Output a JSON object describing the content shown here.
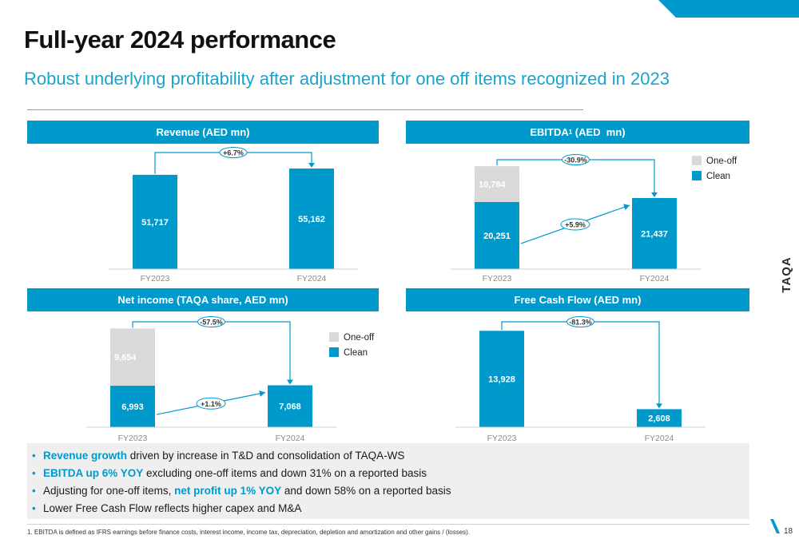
{
  "title": "Full-year 2024 performance",
  "subtitle": "Robust underlying profitability after adjustment for one off items recognized in 2023",
  "brand": "TAQA",
  "colors": {
    "accent": "#0099cc",
    "clean": "#0099cc",
    "one_off": "#d9d9d9",
    "arrow": "#0099cc"
  },
  "panels": {
    "revenue": {
      "header": "Revenue (AED mn)"
    },
    "ebitda": {
      "header_main": "EBITDA",
      "header_sup": "1",
      "header_tail": " (AED  mn)"
    },
    "net_income": {
      "header": "Net income (TAQA share, AED mn)"
    },
    "fcf": {
      "header": "Free Cash Flow (AED mn)"
    }
  },
  "chart_data": [
    {
      "id": "revenue",
      "type": "bar",
      "title": "Revenue (AED mn)",
      "categories": [
        "FY2023",
        "FY2024"
      ],
      "series": [
        {
          "name": "Clean",
          "values": [
            51717,
            55162
          ],
          "labels": [
            "51,717",
            "55,162"
          ]
        }
      ],
      "change_label": "+6.7%",
      "ylim": [
        0,
        60000
      ]
    },
    {
      "id": "ebitda",
      "type": "bar",
      "title": "EBITDA¹ (AED  mn)",
      "categories": [
        "FY2023",
        "FY2024"
      ],
      "series": [
        {
          "name": "Clean",
          "values": [
            20251,
            21437
          ],
          "labels": [
            "20,251",
            "21,437"
          ]
        },
        {
          "name": "One-off",
          "values": [
            10784,
            null
          ],
          "labels": [
            "10,784",
            ""
          ]
        }
      ],
      "legend": [
        "One-off",
        "Clean"
      ],
      "legend_position": "top-right",
      "change_label": "-30.9%",
      "clean_change_label": "+5.9%",
      "ylim": [
        0,
        33000
      ]
    },
    {
      "id": "net_income",
      "type": "bar",
      "title": "Net income (TAQA share, AED mn)",
      "categories": [
        "FY2023",
        "FY2024"
      ],
      "series": [
        {
          "name": "Clean",
          "values": [
            6993,
            7068
          ],
          "labels": [
            "6,993",
            "7,068"
          ]
        },
        {
          "name": "One-off",
          "values": [
            9654,
            null
          ],
          "labels": [
            "9,654",
            ""
          ]
        }
      ],
      "legend": [
        "One-off",
        "Clean"
      ],
      "legend_position": "top-right",
      "change_label": "-57.5%",
      "clean_change_label": "+1.1%",
      "ylim": [
        0,
        17500
      ]
    },
    {
      "id": "fcf",
      "type": "bar",
      "title": "Free Cash Flow (AED mn)",
      "categories": [
        "FY2023",
        "FY2024"
      ],
      "series": [
        {
          "name": "Clean",
          "values": [
            13928,
            2608
          ],
          "labels": [
            "13,928",
            "2,608"
          ]
        }
      ],
      "change_label": "-81.3%",
      "ylim": [
        0,
        15000
      ]
    }
  ],
  "bullets": [
    {
      "highlight": "Revenue growth",
      "text": " driven by increase in T&D and  consolidation of TAQA-WS",
      "suffix": ""
    },
    {
      "highlight": "EBITDA up 6% YOY",
      "text": " excluding one-off items and down 31% on a reported basis",
      "suffix": ""
    },
    {
      "highlight": "",
      "text": "Adjusting for one-off items, ",
      "highlight2": "net profit up 1% YOY",
      "suffix": " and down 58% on a reported basis"
    },
    {
      "highlight": "",
      "text": "Lower Free Cash Flow reflects higher capex and M&A",
      "suffix": ""
    }
  ],
  "bullet_marker": "•",
  "footnote": "1. EBITDA is defined as IFRS earnings before finance costs, interest income, income tax, depreciation, depletion and amortization and other gains / (losses).",
  "page_number": "18"
}
